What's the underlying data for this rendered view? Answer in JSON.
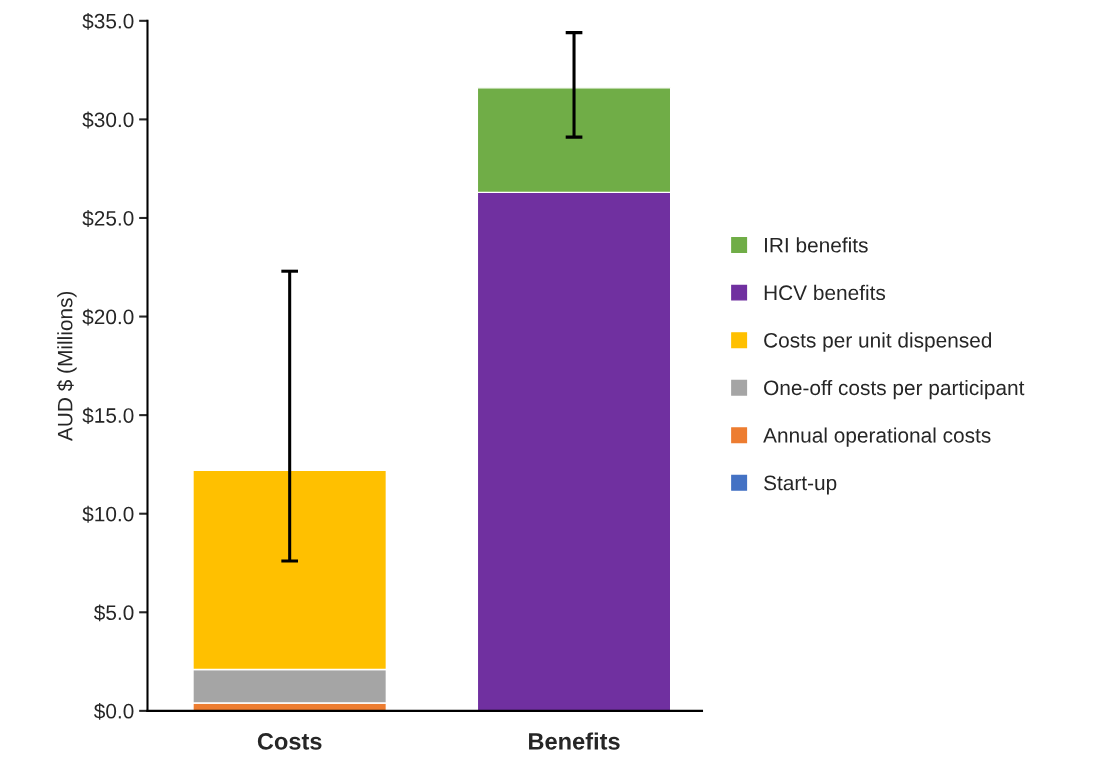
{
  "chart_data": {
    "type": "bar",
    "stacked": true,
    "ylabel": "AUD $ (Millions)",
    "categories": [
      "Costs",
      "Benefits"
    ],
    "series": [
      {
        "name": "Start-up",
        "color": "#4472c4",
        "values": [
          0.0,
          null
        ]
      },
      {
        "name": "Annual operational costs",
        "color": "#ed7d31",
        "values": [
          0.4,
          null
        ]
      },
      {
        "name": "One-off costs per participant",
        "color": "#a5a5a5",
        "values": [
          1.7,
          null
        ]
      },
      {
        "name": "Costs per unit dispensed",
        "color": "#ffc000",
        "values": [
          10.1,
          null
        ],
        "errors": [
          [
            7.6,
            22.3
          ],
          null
        ]
      },
      {
        "name": "HCV benefits",
        "color": "#7030a0",
        "values": [
          null,
          26.3
        ]
      },
      {
        "name": "IRI benefits",
        "color": "#70ad47",
        "values": [
          null,
          5.3
        ],
        "errors": [
          null,
          [
            29.1,
            34.4
          ]
        ]
      }
    ],
    "ylim": [
      0,
      35
    ],
    "yticks": [
      {
        "value": 0,
        "label": "$0.0"
      },
      {
        "value": 5,
        "label": "$5.0"
      },
      {
        "value": 10,
        "label": "$10.0"
      },
      {
        "value": 15,
        "label": "$15.0"
      },
      {
        "value": 20,
        "label": "$20.0"
      },
      {
        "value": 25,
        "label": "$25.0"
      },
      {
        "value": 30,
        "label": "$30.0"
      },
      {
        "value": 35,
        "label": "$35.0"
      }
    ],
    "grid": false,
    "legend": "right"
  }
}
